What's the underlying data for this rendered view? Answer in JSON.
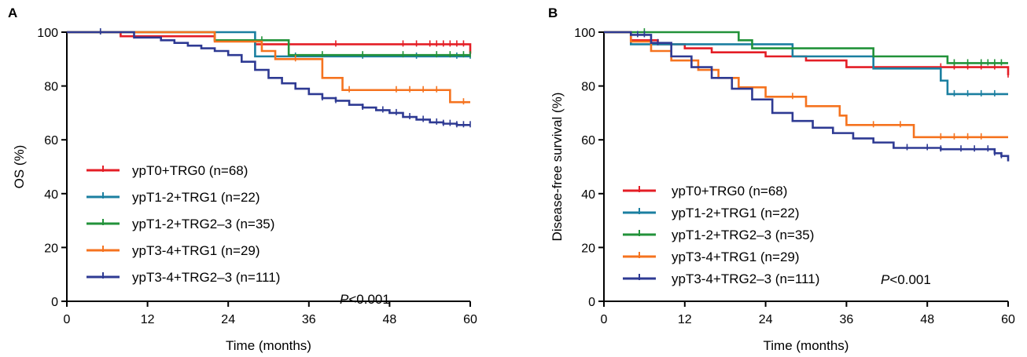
{
  "chart_data": [
    {
      "type": "line",
      "panel_label": "A",
      "xlabel": "Time (months)",
      "ylabel": "OS (%)",
      "xlim": [
        0,
        60
      ],
      "ylim": [
        0,
        100
      ],
      "xticks": [
        0,
        12,
        24,
        36,
        48,
        60
      ],
      "yticks": [
        0,
        20,
        40,
        60,
        80,
        100
      ],
      "grid": false,
      "legend_position": "bottom-left",
      "annotation": {
        "italic": "P",
        "text": "<0.001"
      },
      "series": [
        {
          "name": "ypT0+TRG0 (n=68)",
          "color": "#e41e26",
          "x": [
            0,
            8,
            22,
            28,
            35,
            59,
            60
          ],
          "y": [
            100,
            98.5,
            97,
            95.5,
            95.5,
            95.5,
            92
          ],
          "censor_x": [
            10,
            40,
            50,
            52,
            54,
            55,
            56,
            57,
            58,
            59,
            60
          ]
        },
        {
          "name": "ypT1-2+TRG1 (n=22)",
          "color": "#1b7fa0",
          "x": [
            0,
            28,
            60
          ],
          "y": [
            100,
            91,
            91
          ],
          "censor_x": [
            5,
            34,
            44,
            52,
            58,
            60
          ]
        },
        {
          "name": "ypT1-2+TRG2–3 (n=35)",
          "color": "#22923a",
          "x": [
            0,
            22,
            33,
            60
          ],
          "y": [
            100,
            97,
            91.5,
            91.5
          ],
          "censor_x": [
            29,
            38,
            44,
            50,
            55,
            57,
            59,
            60
          ]
        },
        {
          "name": "ypT3-4+TRG1 (n=29)",
          "color": "#f5731f",
          "x": [
            0,
            22,
            29,
            31,
            38,
            41,
            50,
            57,
            60
          ],
          "y": [
            100,
            96.5,
            93,
            90,
            83,
            78.5,
            78.5,
            74,
            74
          ],
          "censor_x": [
            34,
            42,
            49,
            51,
            53,
            55,
            59
          ]
        },
        {
          "name": "ypT3-4+TRG2–3 (n=111)",
          "color": "#2e3a93",
          "x": [
            0,
            10,
            14,
            16,
            18,
            20,
            22,
            24,
            26,
            28,
            30,
            32,
            34,
            36,
            38,
            40,
            42,
            44,
            46,
            48,
            50,
            52,
            54,
            56,
            58,
            60
          ],
          "y": [
            100,
            98,
            97,
            96,
            95,
            94,
            93,
            91.5,
            89,
            86,
            83,
            81,
            79,
            77,
            75.5,
            74.5,
            73,
            72,
            71,
            70,
            68.5,
            67.5,
            66.5,
            66,
            65.5,
            65.5
          ],
          "censor_x": [
            5,
            38,
            40,
            44,
            47,
            49,
            51,
            53,
            55,
            56,
            57,
            58,
            59,
            60
          ]
        }
      ]
    },
    {
      "type": "line",
      "panel_label": "B",
      "xlabel": "Time (months)",
      "ylabel": "Disease-free survival (%)",
      "xlim": [
        0,
        60
      ],
      "ylim": [
        0,
        100
      ],
      "xticks": [
        0,
        12,
        24,
        36,
        48,
        60
      ],
      "yticks": [
        0,
        20,
        40,
        60,
        80,
        100
      ],
      "grid": false,
      "legend_position": "bottom-left",
      "annotation": {
        "italic": "P",
        "text": "<0.001"
      },
      "series": [
        {
          "name": "ypT0+TRG0 (n=68)",
          "color": "#e41e26",
          "x": [
            0,
            4,
            8,
            12,
            16,
            24,
            30,
            36,
            44,
            60
          ],
          "y": [
            100,
            97,
            95.5,
            94,
            92.5,
            91,
            89.5,
            87,
            87,
            84
          ],
          "censor_x": [
            50,
            52,
            54,
            56,
            58,
            60
          ]
        },
        {
          "name": "ypT1-2+TRG1 (n=22)",
          "color": "#1b7fa0",
          "x": [
            0,
            4,
            28,
            40,
            50,
            51,
            60
          ],
          "y": [
            100,
            95.5,
            91,
            86.5,
            82,
            77,
            77
          ],
          "censor_x": [
            7,
            52,
            54,
            56,
            58
          ]
        },
        {
          "name": "ypT1-2+TRG2–3 (n=35)",
          "color": "#22923a",
          "x": [
            0,
            20,
            22,
            26,
            40,
            50,
            51,
            60
          ],
          "y": [
            100,
            97,
            94,
            94,
            91,
            91,
            88.5,
            88.5
          ],
          "censor_x": [
            6,
            52,
            54,
            56,
            57,
            58,
            59
          ]
        },
        {
          "name": "ypT3-4+TRG1 (n=29)",
          "color": "#f5731f",
          "x": [
            0,
            4,
            7,
            10,
            14,
            17,
            20,
            24,
            30,
            35,
            36,
            45,
            46,
            60
          ],
          "y": [
            100,
            96.5,
            93,
            89.5,
            86,
            83,
            79.5,
            76,
            72.5,
            69,
            65.5,
            65.5,
            61,
            61
          ],
          "censor_x": [
            28,
            40,
            44,
            50,
            52,
            54,
            56
          ]
        },
        {
          "name": "ypT3-4+TRG2–3 (n=111)",
          "color": "#2e3a93",
          "x": [
            0,
            4,
            7,
            10,
            13,
            16,
            19,
            22,
            25,
            28,
            31,
            34,
            37,
            40,
            43,
            47,
            50,
            55,
            58,
            59,
            60
          ],
          "y": [
            100,
            99,
            96,
            91,
            87,
            83,
            79,
            75,
            70,
            67,
            64.5,
            62.5,
            60.5,
            59,
            57,
            57,
            56.5,
            56.5,
            55,
            54,
            52
          ],
          "censor_x": [
            5,
            6,
            8,
            45,
            48,
            50,
            53,
            55,
            57,
            58,
            59
          ]
        }
      ]
    }
  ]
}
